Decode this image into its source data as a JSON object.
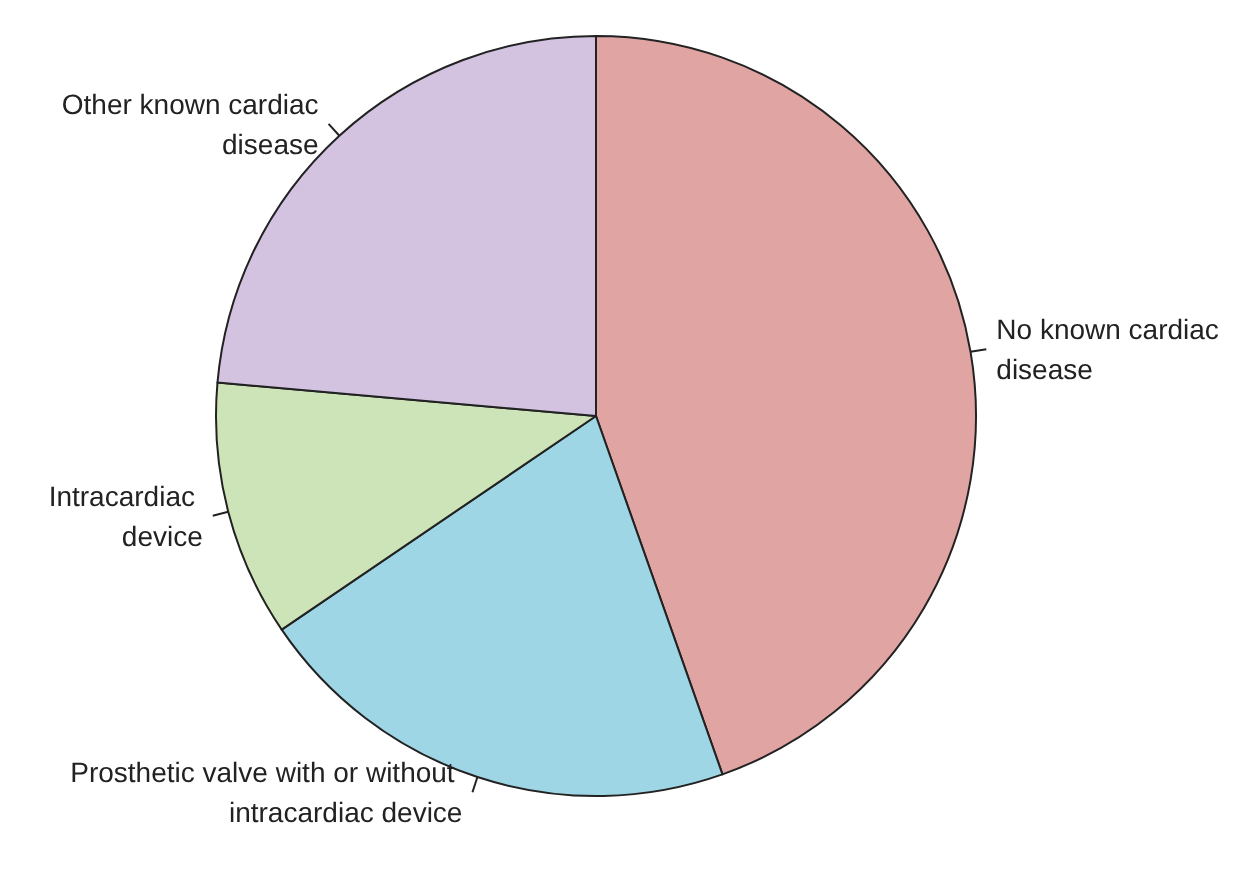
{
  "chart_data": {
    "type": "pie",
    "categories": [
      "No known cardiac disease",
      "Prosthetic valve with or without intracardiac device",
      "Intracardiac device",
      "Other known cardiac disease"
    ],
    "values": [
      44.6,
      20.9,
      10.9,
      23.6
    ],
    "colors": [
      "#e0a5a3",
      "#9ed6e6",
      "#cde4b8",
      "#d3c3e1"
    ],
    "legend": false
  }
}
